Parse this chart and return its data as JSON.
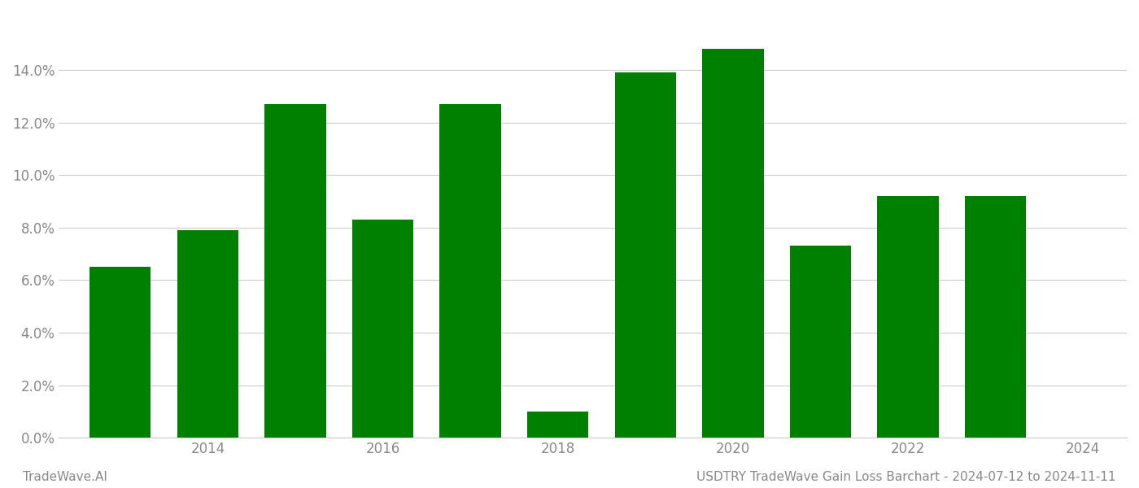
{
  "years": [
    2013,
    2014,
    2015,
    2016,
    2017,
    2018,
    2019,
    2020,
    2021,
    2022,
    2023
  ],
  "values": [
    0.065,
    0.079,
    0.127,
    0.083,
    0.127,
    0.01,
    0.139,
    0.148,
    0.073,
    0.092,
    0.092
  ],
  "bar_color": "#008000",
  "background_color": "#ffffff",
  "grid_color": "#cccccc",
  "ytick_labels": [
    "0.0%",
    "2.0%",
    "4.0%",
    "6.0%",
    "8.0%",
    "10.0%",
    "12.0%",
    "14.0%"
  ],
  "ytick_values": [
    0.0,
    0.02,
    0.04,
    0.06,
    0.08,
    0.1,
    0.12,
    0.14
  ],
  "ylim": [
    0.0,
    0.162
  ],
  "xtick_positions": [
    2014,
    2016,
    2018,
    2020,
    2022,
    2024
  ],
  "xtick_labels": [
    "2014",
    "2016",
    "2018",
    "2020",
    "2022",
    "2024"
  ],
  "xlim": [
    2012.3,
    2024.5
  ],
  "footer_left": "TradeWave.AI",
  "footer_right": "USDTRY TradeWave Gain Loss Barchart - 2024-07-12 to 2024-11-11",
  "footer_color": "#888888",
  "footer_fontsize": 11,
  "axis_label_color": "#888888",
  "bar_width": 0.7
}
